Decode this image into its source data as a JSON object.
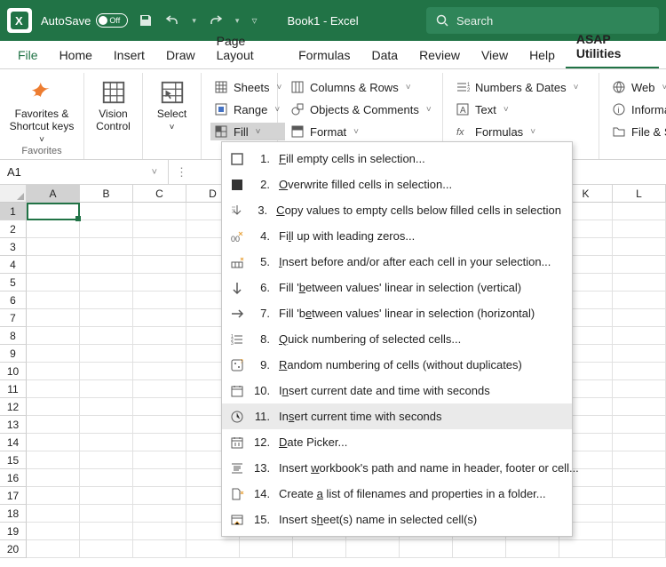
{
  "title_autosave": "AutoSave",
  "title_off": "Off",
  "doc_title": "Book1  -  Excel",
  "search_placeholder": "Search",
  "tabs": {
    "file": "File",
    "home": "Home",
    "insert": "Insert",
    "draw": "Draw",
    "layout": "Page Layout",
    "formulas": "Formulas",
    "data": "Data",
    "review": "Review",
    "view": "View",
    "help": "Help",
    "asap": "ASAP Utilities"
  },
  "ribbon": {
    "fav": "Favorites &\nShortcut keys",
    "fav_group": "Favorites",
    "vision": "Vision\nControl",
    "select": "Select",
    "sheets": "Sheets",
    "range": "Range",
    "fill": "Fill",
    "columns": "Columns & Rows",
    "objects": "Objects & Comments",
    "format": "Format",
    "numbers": "Numbers & Dates",
    "text": "Text",
    "formulascmd": "Formulas",
    "web": "Web",
    "info": "Information",
    "filesys": "File & System"
  },
  "namebox": "A1",
  "cols": [
    "A",
    "B",
    "C",
    "D",
    "E",
    "F",
    "G",
    "H",
    "I",
    "J",
    "K",
    "L"
  ],
  "rows": 20,
  "menu": [
    {
      "n": "1.",
      "t": [
        "",
        "F",
        "ill empty cells in selection..."
      ]
    },
    {
      "n": "2.",
      "t": [
        "",
        "O",
        "verwrite filled cells in selection..."
      ]
    },
    {
      "n": "3.",
      "t": [
        "",
        "C",
        "opy values to empty cells below filled cells in selection"
      ]
    },
    {
      "n": "4.",
      "t": [
        "Fi",
        "l",
        "l up with leading zeros..."
      ]
    },
    {
      "n": "5.",
      "t": [
        "",
        "I",
        "nsert before and/or after each cell in your selection..."
      ]
    },
    {
      "n": "6.",
      "t": [
        "Fill '",
        "b",
        "etween values' linear in selection (vertical)"
      ]
    },
    {
      "n": "7.",
      "t": [
        "Fill 'b",
        "e",
        "tween values' linear in selection (horizontal)"
      ]
    },
    {
      "n": "8.",
      "t": [
        "",
        "Q",
        "uick numbering of selected cells..."
      ]
    },
    {
      "n": "9.",
      "t": [
        "",
        "R",
        "andom numbering of cells (without duplicates)"
      ]
    },
    {
      "n": "10.",
      "t": [
        "I",
        "n",
        "sert current date and time with seconds"
      ]
    },
    {
      "n": "11.",
      "t": [
        "In",
        "s",
        "ert current time with seconds"
      ],
      "hover": true
    },
    {
      "n": "12.",
      "t": [
        "",
        "D",
        "ate Picker..."
      ]
    },
    {
      "n": "13.",
      "t": [
        "Insert ",
        "w",
        "orkbook's path and name in header, footer or cell..."
      ]
    },
    {
      "n": "14.",
      "t": [
        "Create ",
        "a",
        " list of filenames and properties in a folder..."
      ]
    },
    {
      "n": "15.",
      "t": [
        "Insert s",
        "h",
        "eet(s) name in selected cell(s)"
      ]
    }
  ],
  "colors": {
    "brand": "#217346"
  }
}
